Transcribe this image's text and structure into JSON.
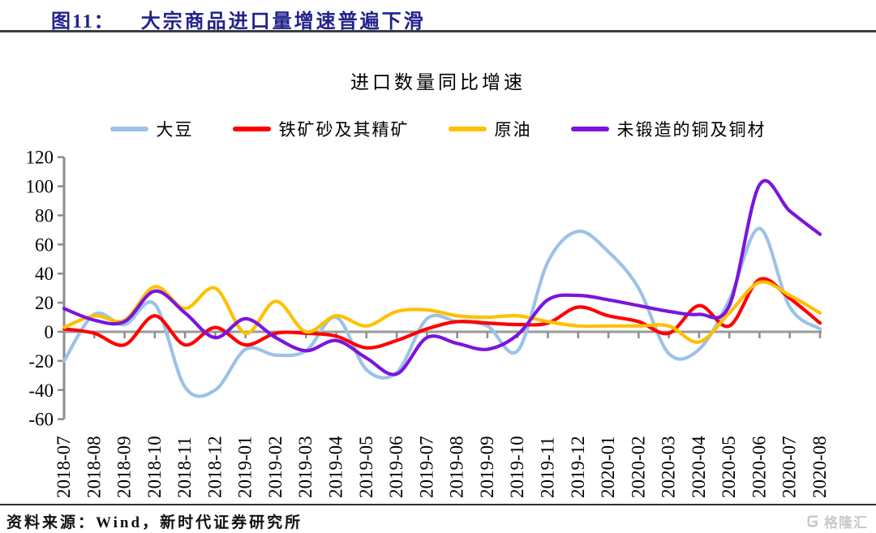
{
  "figure_header": {
    "label": "图11：",
    "title": "大宗商品进口量增速普遍下滑",
    "accent_color": "#22228C"
  },
  "chart_data": {
    "type": "line",
    "title": "进口数量同比增速",
    "categories": [
      "2018-07",
      "2018-08",
      "2018-09",
      "2018-10",
      "2018-11",
      "2018-12",
      "2019-01",
      "2019-02",
      "2019-03",
      "2019-04",
      "2019-05",
      "2019-06",
      "2019-07",
      "2019-08",
      "2019-09",
      "2019-10",
      "2019-11",
      "2019-12",
      "2020-01",
      "2020-02",
      "2020-03",
      "2020-04",
      "2020-05",
      "2020-06",
      "2020-07",
      "2020-08"
    ],
    "series": [
      {
        "name": "大豆",
        "color": "#9CC2E8",
        "values": [
          -20,
          12,
          5,
          19,
          -38,
          -40,
          -12,
          -16,
          -13,
          10,
          -26,
          -28,
          9,
          7,
          4,
          -13,
          48,
          69,
          55,
          30,
          -15,
          -12,
          22,
          71,
          17,
          2
        ]
      },
      {
        "name": "铁矿砂及其精矿",
        "color": "#FF0000",
        "values": [
          2,
          -1,
          -9,
          11,
          -9,
          3,
          -9,
          -1,
          -1,
          -3,
          -11,
          -6,
          2,
          7,
          6,
          5,
          6,
          17,
          11,
          7,
          -1,
          18,
          4,
          36,
          23,
          6
        ]
      },
      {
        "name": "原油",
        "color": "#FFC000",
        "values": [
          3,
          11,
          8,
          31,
          16,
          30,
          -1,
          21,
          0,
          11,
          4,
          14,
          15,
          11,
          10,
          11,
          7,
          4,
          4,
          4,
          4,
          -7,
          13,
          34,
          25,
          13
        ]
      },
      {
        "name": "未锻造的铜及铜材",
        "color": "#7B15DC",
        "values": [
          16,
          8,
          7,
          28,
          13,
          -4,
          9,
          -4,
          -13,
          -6,
          -18,
          -29,
          -4,
          -8,
          -12,
          -2,
          22,
          25,
          22,
          18,
          14,
          12,
          18,
          101,
          83,
          67
        ]
      }
    ],
    "ylim": [
      -60,
      120
    ],
    "ytick_step": 20,
    "grid": false,
    "legend_position": "top",
    "smooth_lines": true,
    "axis_color": "#8C8C8C",
    "label_color": "#000000"
  },
  "footer": {
    "source": "资料来源：Wind，新时代证券研究所",
    "logo_text": "格隆汇"
  }
}
